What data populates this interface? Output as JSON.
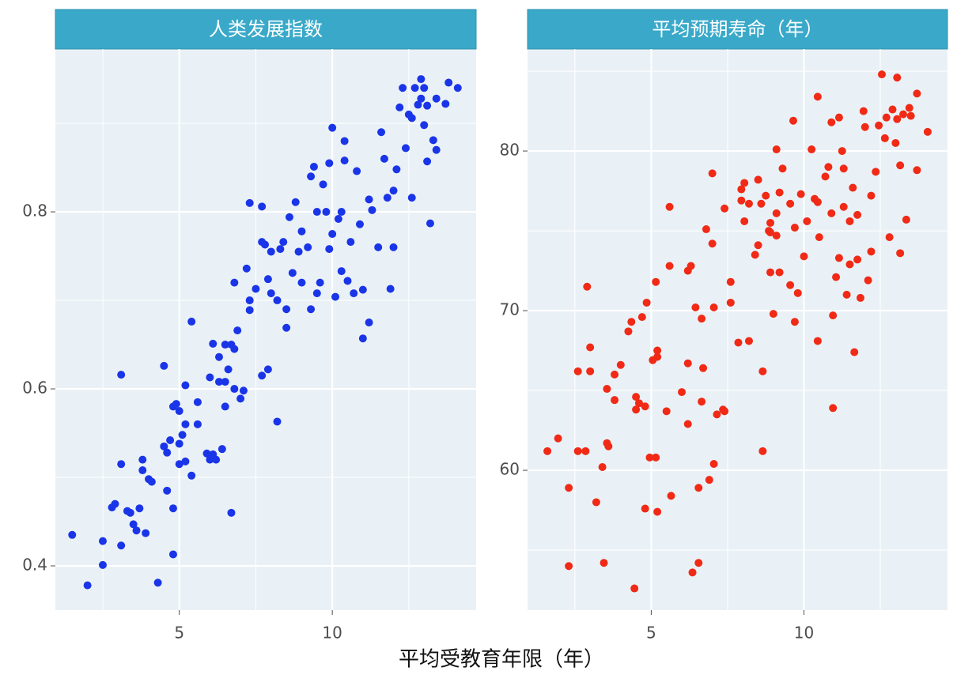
{
  "xlabel": "平均受教育年限（年）",
  "chart_data": [
    {
      "type": "scatter",
      "title": "人类发展指数",
      "color": "#1a35e8",
      "xlim": [
        0.95,
        14.7
      ],
      "xticks": [
        5,
        10
      ],
      "ylim": [
        0.35,
        0.984
      ],
      "yticks": [
        0.4,
        0.6,
        0.8
      ],
      "grid": true,
      "x": [
        1.5,
        2.0,
        2.5,
        2.5,
        2.8,
        2.9,
        3.1,
        3.1,
        3.1,
        3.3,
        3.4,
        3.5,
        3.6,
        3.7,
        3.8,
        3.8,
        3.9,
        4.0,
        4.1,
        4.3,
        4.5,
        4.5,
        4.6,
        4.6,
        4.7,
        4.8,
        4.8,
        4.8,
        4.9,
        5.0,
        5.0,
        5.0,
        5.1,
        5.2,
        5.2,
        5.2,
        5.4,
        5.4,
        5.6,
        5.6,
        5.9,
        6.0,
        6.0,
        6.1,
        6.1,
        6.2,
        6.3,
        6.3,
        6.4,
        6.5,
        6.5,
        6.5,
        6.6,
        6.7,
        6.7,
        6.8,
        6.8,
        6.8,
        6.9,
        7.0,
        7.1,
        7.2,
        7.3,
        7.3,
        7.3,
        7.5,
        7.7,
        7.7,
        7.7,
        7.8,
        7.9,
        7.9,
        8.0,
        8.0,
        8.2,
        8.2,
        8.3,
        8.4,
        8.5,
        8.5,
        8.6,
        8.7,
        8.8,
        8.9,
        9.0,
        9.0,
        9.2,
        9.3,
        9.3,
        9.4,
        9.5,
        9.5,
        9.6,
        9.7,
        9.8,
        9.9,
        9.9,
        10.0,
        10.0,
        10.1,
        10.2,
        10.3,
        10.3,
        10.4,
        10.4,
        10.5,
        10.6,
        10.7,
        10.8,
        10.9,
        11.0,
        11.0,
        11.2,
        11.2,
        11.3,
        11.5,
        11.6,
        11.7,
        11.8,
        11.9,
        12.0,
        12.0,
        12.1,
        12.2,
        12.3,
        12.4,
        12.5,
        12.6,
        12.6,
        12.7,
        12.8,
        12.9,
        12.9,
        13.0,
        13.0,
        13.1,
        13.1,
        13.2,
        13.3,
        13.4,
        13.4,
        13.7,
        13.8,
        14.1
      ],
      "values": [
        0.435,
        0.378,
        0.428,
        0.401,
        0.466,
        0.47,
        0.616,
        0.515,
        0.423,
        0.462,
        0.46,
        0.447,
        0.44,
        0.465,
        0.508,
        0.52,
        0.437,
        0.498,
        0.495,
        0.381,
        0.535,
        0.626,
        0.485,
        0.528,
        0.542,
        0.465,
        0.58,
        0.413,
        0.583,
        0.515,
        0.538,
        0.575,
        0.548,
        0.56,
        0.604,
        0.518,
        0.502,
        0.676,
        0.56,
        0.585,
        0.527,
        0.613,
        0.52,
        0.526,
        0.651,
        0.52,
        0.608,
        0.636,
        0.532,
        0.65,
        0.608,
        0.58,
        0.622,
        0.65,
        0.46,
        0.6,
        0.645,
        0.72,
        0.666,
        0.589,
        0.598,
        0.736,
        0.689,
        0.81,
        0.7,
        0.713,
        0.806,
        0.766,
        0.615,
        0.763,
        0.622,
        0.724,
        0.755,
        0.708,
        0.7,
        0.563,
        0.758,
        0.766,
        0.69,
        0.669,
        0.794,
        0.731,
        0.811,
        0.755,
        0.778,
        0.72,
        0.76,
        0.69,
        0.84,
        0.851,
        0.708,
        0.8,
        0.72,
        0.831,
        0.8,
        0.855,
        0.758,
        0.895,
        0.775,
        0.704,
        0.792,
        0.8,
        0.733,
        0.858,
        0.88,
        0.722,
        0.766,
        0.708,
        0.846,
        0.786,
        0.657,
        0.712,
        0.814,
        0.675,
        0.802,
        0.76,
        0.89,
        0.86,
        0.816,
        0.713,
        0.76,
        0.824,
        0.848,
        0.918,
        0.94,
        0.872,
        0.91,
        0.906,
        0.816,
        0.94,
        0.921,
        0.95,
        0.928,
        0.94,
        0.898,
        0.92,
        0.857,
        0.787,
        0.881,
        0.928,
        0.87,
        0.922,
        0.946,
        0.94
      ]
    },
    {
      "type": "scatter",
      "title": "平均预期寿命（年）",
      "color": "#f02a16",
      "xlim": [
        0.95,
        14.7
      ],
      "xticks": [
        5,
        10
      ],
      "ylim": [
        51.24,
        86.39
      ],
      "yticks": [
        60,
        70,
        80
      ],
      "grid": true,
      "x": [
        1.6,
        1.95,
        2.3,
        2.3,
        2.6,
        2.6,
        2.85,
        2.9,
        3.0,
        3.0,
        3.2,
        3.4,
        3.45,
        3.55,
        3.55,
        3.6,
        3.8,
        3.8,
        4.0,
        4.25,
        4.35,
        4.45,
        4.5,
        4.5,
        4.6,
        4.7,
        4.8,
        4.8,
        4.85,
        4.95,
        5.05,
        5.15,
        5.15,
        5.2,
        5.2,
        5.2,
        5.5,
        5.6,
        5.6,
        5.65,
        6.0,
        6.2,
        6.2,
        6.2,
        6.3,
        6.35,
        6.45,
        6.55,
        6.55,
        6.65,
        6.65,
        6.7,
        6.8,
        6.9,
        7.0,
        7.0,
        7.05,
        7.05,
        7.15,
        7.35,
        7.4,
        7.4,
        7.6,
        7.6,
        7.85,
        7.95,
        7.95,
        8.05,
        8.05,
        8.2,
        8.2,
        8.4,
        8.5,
        8.5,
        8.6,
        8.65,
        8.65,
        8.75,
        8.85,
        8.9,
        8.9,
        8.9,
        9.0,
        9.1,
        9.1,
        9.1,
        9.2,
        9.2,
        9.3,
        9.55,
        9.55,
        9.65,
        9.7,
        9.7,
        9.8,
        9.9,
        10.0,
        10.1,
        10.25,
        10.35,
        10.45,
        10.45,
        10.45,
        10.5,
        10.7,
        10.8,
        10.9,
        10.9,
        10.95,
        10.95,
        11.05,
        11.15,
        11.15,
        11.25,
        11.3,
        11.3,
        11.4,
        11.5,
        11.5,
        11.6,
        11.65,
        11.75,
        11.75,
        11.85,
        11.95,
        12.0,
        12.1,
        12.2,
        12.2,
        12.35,
        12.45,
        12.55,
        12.65,
        12.7,
        12.8,
        12.9,
        13.0,
        13.05,
        13.05,
        13.15,
        13.15,
        13.25,
        13.35,
        13.45,
        13.5,
        13.7,
        13.7,
        14.05
      ],
      "values": [
        61.2,
        62.0,
        58.9,
        54.0,
        61.2,
        66.2,
        61.2,
        71.5,
        67.7,
        66.2,
        58.0,
        60.2,
        54.2,
        61.7,
        65.1,
        61.5,
        66.0,
        64.4,
        66.6,
        68.7,
        69.3,
        52.6,
        64.6,
        63.8,
        64.2,
        69.6,
        57.6,
        64.0,
        70.5,
        60.8,
        66.9,
        60.8,
        71.8,
        67.5,
        67.1,
        57.4,
        63.7,
        76.5,
        72.8,
        58.4,
        64.9,
        72.5,
        66.7,
        62.9,
        72.8,
        53.6,
        70.2,
        58.9,
        54.2,
        69.5,
        64.3,
        66.4,
        75.1,
        59.4,
        78.6,
        74.2,
        70.2,
        60.4,
        63.5,
        63.8,
        63.7,
        76.4,
        70.5,
        71.8,
        68.0,
        76.9,
        77.6,
        78.0,
        75.6,
        76.7,
        68.1,
        73.5,
        78.2,
        74.1,
        76.7,
        66.2,
        61.2,
        77.2,
        75.0,
        74.9,
        75.5,
        72.4,
        69.8,
        74.7,
        76.1,
        80.1,
        72.4,
        77.4,
        78.9,
        71.6,
        76.7,
        81.9,
        69.3,
        75.2,
        71.1,
        77.3,
        73.4,
        75.6,
        80.1,
        77.0,
        76.8,
        83.4,
        68.1,
        74.6,
        78.4,
        79.0,
        81.8,
        76.1,
        69.7,
        63.9,
        72.1,
        82.1,
        73.3,
        80.0,
        78.9,
        76.5,
        71.0,
        72.9,
        75.6,
        77.7,
        67.4,
        76.0,
        73.2,
        70.8,
        82.5,
        81.5,
        71.9,
        73.7,
        77.2,
        78.7,
        81.6,
        84.8,
        80.8,
        82.1,
        74.6,
        82.6,
        80.5,
        82.0,
        84.6,
        79.1,
        73.6,
        82.3,
        75.7,
        82.7,
        82.2,
        83.6,
        78.8,
        81.2
      ]
    }
  ]
}
